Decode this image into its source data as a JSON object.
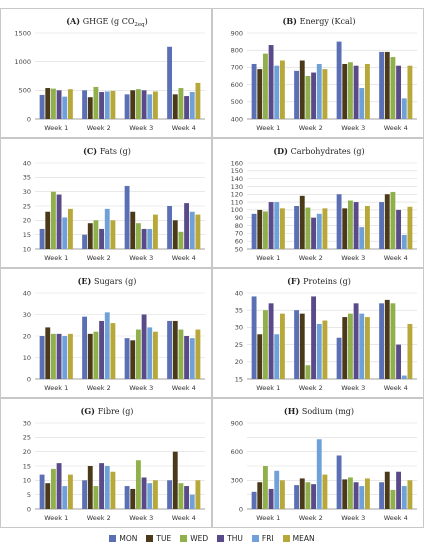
{
  "colors": {
    "MON": "#5b6fb5",
    "TUE": "#4a3a1a",
    "WED": "#8fb04a",
    "THU": "#5a4a8a",
    "FRI": "#6fa0d8",
    "MEAN": "#b8a83a",
    "grid": "#d9d9d9",
    "axis": "#888888"
  },
  "legend": [
    "MON",
    "TUE",
    "WED",
    "THU",
    "FRI",
    "MEAN"
  ],
  "chart_data": [
    {
      "type": "bar",
      "letter": "(A)",
      "title": "GHGE (g CO",
      "title_sub": "2eq",
      "title_end": ")",
      "categories": [
        "Week 1",
        "Week 2",
        "Week 3",
        "Week 4"
      ],
      "ylim": [
        0,
        1500
      ],
      "yticks": [
        0,
        500,
        1000,
        1500
      ],
      "gridlines": [
        0,
        500,
        1000,
        1500
      ],
      "series": [
        {
          "name": "MON",
          "values": [
            420,
            500,
            430,
            1260
          ]
        },
        {
          "name": "TUE",
          "values": [
            540,
            380,
            500,
            430
          ]
        },
        {
          "name": "WED",
          "values": [
            530,
            560,
            520,
            540
          ]
        },
        {
          "name": "THU",
          "values": [
            500,
            470,
            500,
            400
          ]
        },
        {
          "name": "FRI",
          "values": [
            390,
            480,
            430,
            470
          ]
        },
        {
          "name": "MEAN",
          "values": [
            520,
            490,
            480,
            630
          ]
        }
      ]
    },
    {
      "type": "bar",
      "letter": "(B)",
      "title": "Energy (Kcal)",
      "title_sub": "",
      "title_end": "",
      "categories": [
        "Week 1",
        "Week 2",
        "Week 3",
        "Week 4"
      ],
      "ylim": [
        400,
        900
      ],
      "yticks": [
        400,
        500,
        600,
        700,
        800,
        900
      ],
      "gridlines": [
        400,
        500,
        600,
        700,
        800,
        900
      ],
      "series": [
        {
          "name": "MON",
          "values": [
            720,
            680,
            850,
            790
          ]
        },
        {
          "name": "TUE",
          "values": [
            690,
            740,
            720,
            790
          ]
        },
        {
          "name": "WED",
          "values": [
            780,
            650,
            730,
            760
          ]
        },
        {
          "name": "THU",
          "values": [
            830,
            670,
            710,
            710
          ]
        },
        {
          "name": "FRI",
          "values": [
            710,
            720,
            580,
            520
          ]
        },
        {
          "name": "MEAN",
          "values": [
            740,
            690,
            720,
            710
          ]
        }
      ]
    },
    {
      "type": "bar",
      "letter": "(C)",
      "title": "Fats (g)",
      "title_sub": "",
      "title_end": "",
      "categories": [
        "Week 1",
        "Week 2",
        "Week 3",
        "Week 4"
      ],
      "ylim": [
        10,
        40
      ],
      "yticks": [
        10,
        15,
        20,
        25,
        30,
        35,
        40
      ],
      "gridlines": [
        10,
        15,
        20,
        25,
        30,
        35,
        40
      ],
      "series": [
        {
          "name": "MON",
          "values": [
            17,
            15,
            32,
            25
          ]
        },
        {
          "name": "TUE",
          "values": [
            23,
            19,
            23,
            20
          ]
        },
        {
          "name": "WED",
          "values": [
            30,
            20,
            19,
            16
          ]
        },
        {
          "name": "THU",
          "values": [
            29,
            17,
            17,
            26
          ]
        },
        {
          "name": "FRI",
          "values": [
            21,
            24,
            17,
            23
          ]
        },
        {
          "name": "MEAN",
          "values": [
            24,
            20,
            22,
            22
          ]
        }
      ]
    },
    {
      "type": "bar",
      "letter": "(D)",
      "title": "Carbohydrates (g)",
      "title_sub": "",
      "title_end": "",
      "categories": [
        "Week 1",
        "Week 2",
        "Week 3",
        "Week 4"
      ],
      "ylim": [
        50,
        160
      ],
      "yticks": [
        50,
        60,
        70,
        80,
        90,
        100,
        110,
        120,
        130,
        140,
        150,
        160
      ],
      "gridlines": [
        50,
        60,
        70,
        80,
        90,
        100,
        110,
        120,
        130,
        140,
        150,
        160
      ],
      "series": [
        {
          "name": "MON",
          "values": [
            95,
            105,
            120,
            110
          ]
        },
        {
          "name": "TUE",
          "values": [
            100,
            118,
            102,
            120
          ]
        },
        {
          "name": "WED",
          "values": [
            98,
            103,
            112,
            123
          ]
        },
        {
          "name": "THU",
          "values": [
            110,
            90,
            110,
            100
          ]
        },
        {
          "name": "FRI",
          "values": [
            110,
            95,
            78,
            68
          ]
        },
        {
          "name": "MEAN",
          "values": [
            102,
            102,
            105,
            104
          ]
        }
      ]
    },
    {
      "type": "bar",
      "letter": "(E)",
      "title": "Sugars (g)",
      "title_sub": "",
      "title_end": "",
      "categories": [
        "Week 1",
        "Week 2",
        "Week 3",
        "Week 4"
      ],
      "ylim": [
        0,
        40
      ],
      "yticks": [
        0,
        10,
        20,
        30,
        40
      ],
      "gridlines": [
        0,
        10,
        20,
        30,
        40
      ],
      "series": [
        {
          "name": "MON",
          "values": [
            20,
            29,
            19,
            27
          ]
        },
        {
          "name": "TUE",
          "values": [
            24,
            21,
            18,
            27
          ]
        },
        {
          "name": "WED",
          "values": [
            21,
            22,
            23,
            23
          ]
        },
        {
          "name": "THU",
          "values": [
            21,
            27,
            30,
            20
          ]
        },
        {
          "name": "FRI",
          "values": [
            20,
            31,
            24,
            19
          ]
        },
        {
          "name": "MEAN",
          "values": [
            21,
            26,
            22,
            23
          ]
        }
      ]
    },
    {
      "type": "bar",
      "letter": "(F)",
      "title": "Proteins (g)",
      "title_sub": "",
      "title_end": "",
      "categories": [
        "Week 1",
        "Week 2",
        "Week 3",
        "Week 4"
      ],
      "ylim": [
        15,
        40
      ],
      "yticks": [
        15,
        20,
        25,
        30,
        35,
        40
      ],
      "gridlines": [
        15,
        20,
        25,
        30,
        35,
        40
      ],
      "series": [
        {
          "name": "MON",
          "values": [
            39,
            35,
            27,
            37
          ]
        },
        {
          "name": "TUE",
          "values": [
            28,
            34,
            33,
            38
          ]
        },
        {
          "name": "WED",
          "values": [
            35,
            19,
            34,
            37
          ]
        },
        {
          "name": "THU",
          "values": [
            37,
            39,
            37,
            25
          ]
        },
        {
          "name": "FRI",
          "values": [
            28,
            31,
            34,
            16
          ]
        },
        {
          "name": "MEAN",
          "values": [
            34,
            32,
            33,
            31
          ]
        }
      ]
    },
    {
      "type": "bar",
      "letter": "(G)",
      "title": "Fibre (g)",
      "title_sub": "",
      "title_end": "",
      "categories": [
        "Week 1",
        "Week 2",
        "Week 3",
        "Week 4"
      ],
      "ylim": [
        0,
        30
      ],
      "yticks": [
        0,
        5,
        10,
        15,
        20,
        25,
        30
      ],
      "gridlines": [
        0,
        5,
        10,
        15,
        20,
        25,
        30
      ],
      "series": [
        {
          "name": "MON",
          "values": [
            12,
            10,
            8,
            10
          ]
        },
        {
          "name": "TUE",
          "values": [
            9,
            15,
            7,
            20
          ]
        },
        {
          "name": "WED",
          "values": [
            14,
            8,
            17,
            9
          ]
        },
        {
          "name": "THU",
          "values": [
            16,
            16,
            11,
            8
          ]
        },
        {
          "name": "FRI",
          "values": [
            8,
            15,
            9,
            5
          ]
        },
        {
          "name": "MEAN",
          "values": [
            12,
            13,
            10,
            10
          ]
        }
      ]
    },
    {
      "type": "bar",
      "letter": "(H)",
      "title": "Sodium (mg)",
      "title_sub": "",
      "title_end": "",
      "categories": [
        "Week 1",
        "Week 2",
        "Week 3",
        "Week 4"
      ],
      "ylim": [
        0,
        900
      ],
      "yticks": [
        0,
        300,
        600,
        900
      ],
      "gridlines": [
        0,
        150,
        300,
        450,
        600,
        750,
        900
      ],
      "series": [
        {
          "name": "MON",
          "values": [
            180,
            250,
            560,
            280
          ]
        },
        {
          "name": "TUE",
          "values": [
            280,
            320,
            310,
            390
          ]
        },
        {
          "name": "WED",
          "values": [
            450,
            280,
            330,
            200
          ]
        },
        {
          "name": "THU",
          "values": [
            210,
            260,
            280,
            390
          ]
        },
        {
          "name": "FRI",
          "values": [
            400,
            730,
            240,
            240
          ]
        },
        {
          "name": "MEAN",
          "values": [
            300,
            360,
            320,
            300
          ]
        }
      ]
    }
  ]
}
